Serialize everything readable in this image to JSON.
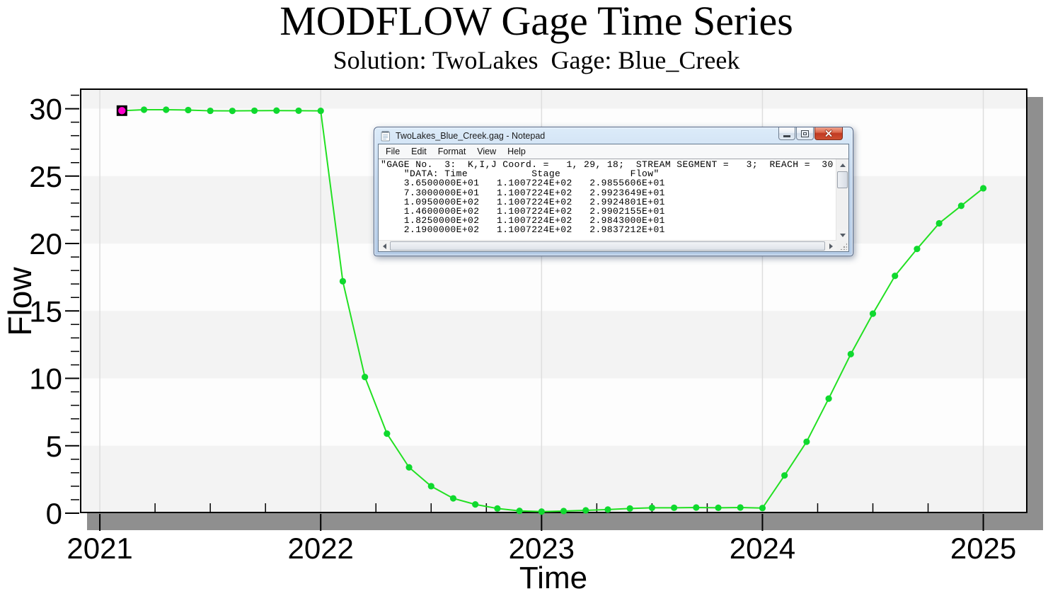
{
  "chart_data": {
    "type": "line",
    "title": "MODFLOW Gage Time Series",
    "subtitle": "Solution: TwoLakes  Gage: Blue_Creek",
    "xlabel": "Time",
    "ylabel": "Flow",
    "xlim": [
      2020.91,
      2025.2
    ],
    "ylim": [
      0,
      31.5
    ],
    "x_major_ticks": [
      2021,
      2022,
      2023,
      2024,
      2025
    ],
    "x_minor_step": 0.25,
    "y_major_ticks": [
      0,
      5,
      10,
      15,
      20,
      25,
      30
    ],
    "y_minor_step": 1,
    "grid": "faint vertical gridlines at year ticks",
    "legend_position": "none",
    "band_interval": 5,
    "band_color": "#f3f3f3",
    "plot_bg": "#fdfdfd",
    "gridline_color": "#dedede",
    "shadow_color": "#8f8f8f",
    "frame_color": "#000000",
    "series": [
      {
        "name": "Flow",
        "line_color": "#22e022",
        "marker_color": "#0fd92e",
        "x": [
          2021.1,
          2021.2,
          2021.3,
          2021.4,
          2021.5,
          2021.6,
          2021.7,
          2021.8,
          2021.9,
          2022.0,
          2022.1,
          2022.2,
          2022.3,
          2022.4,
          2022.5,
          2022.6,
          2022.7,
          2022.8,
          2022.9,
          2023.0,
          2023.1,
          2023.2,
          2023.3,
          2023.4,
          2023.5,
          2023.6,
          2023.7,
          2023.8,
          2023.9,
          2024.0,
          2024.1,
          2024.2,
          2024.3,
          2024.4,
          2024.5,
          2024.6,
          2024.7,
          2024.8,
          2024.9,
          2025.0
        ],
        "y": [
          29.856,
          29.924,
          29.925,
          29.902,
          29.843,
          29.837,
          29.85,
          29.86,
          29.85,
          29.84,
          17.2,
          10.1,
          5.9,
          3.4,
          2.0,
          1.1,
          0.65,
          0.35,
          0.17,
          0.12,
          0.16,
          0.21,
          0.27,
          0.35,
          0.4,
          0.4,
          0.42,
          0.4,
          0.42,
          0.38,
          2.8,
          5.3,
          8.5,
          11.8,
          14.8,
          17.6,
          19.6,
          21.5,
          22.8,
          24.1
        ]
      }
    ],
    "selected_point": {
      "series": 0,
      "index": 0,
      "fill": "#ff00cc",
      "box_color": "#000000"
    }
  },
  "notepad": {
    "title": "TwoLakes_Blue_Creek.gag - Notepad",
    "menu": [
      "File",
      "Edit",
      "Format",
      "View",
      "Help"
    ],
    "content_lines": [
      "\"GAGE No.  3:  K,I,J Coord. =   1, 29, 18;  STREAM SEGMENT =   3;  REACH =  30 \"",
      "    \"DATA: Time           Stage            Flow\"",
      "    3.6500000E+01   1.1007224E+02   2.9855606E+01",
      "    7.3000000E+01   1.1007224E+02   2.9923649E+01",
      "    1.0950000E+02   1.1007224E+02   2.9924801E+01",
      "    1.4600000E+02   1.1007224E+02   2.9902155E+01",
      "    1.8250000E+02   1.1007224E+02   2.9843000E+01",
      "    2.1900000E+02   1.1007224E+02   2.9837212E+01"
    ]
  }
}
